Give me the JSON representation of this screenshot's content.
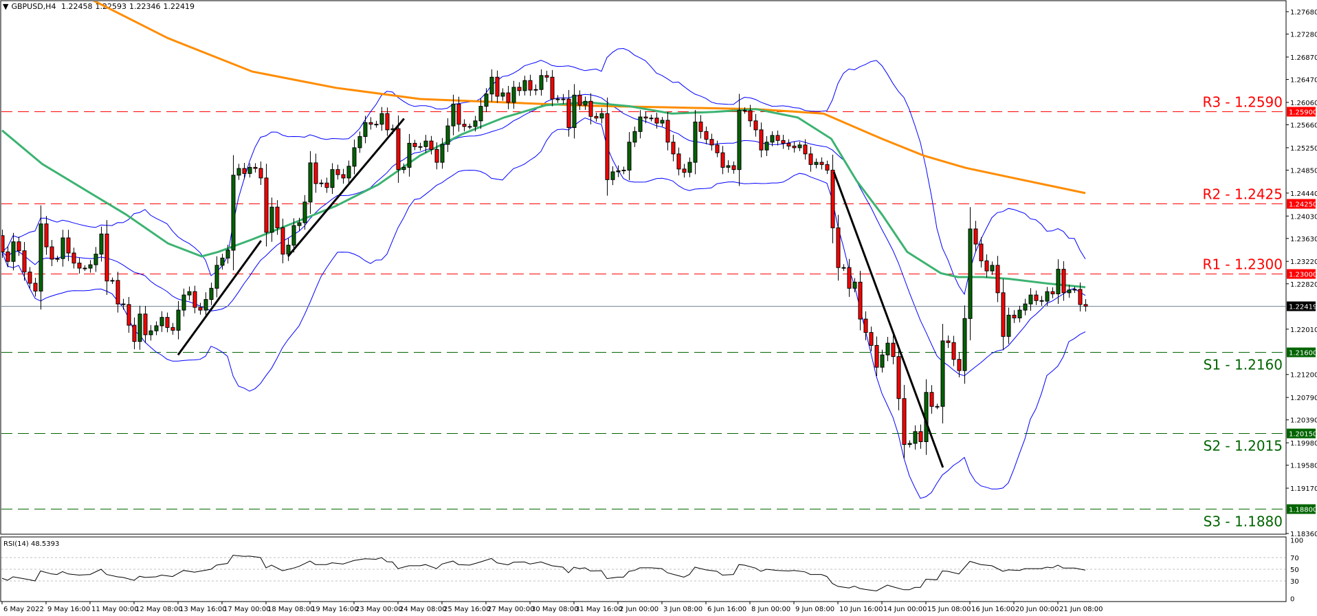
{
  "header": {
    "menu_icon": "triangle-down-icon",
    "symbol_label": "GBPUSD,H4",
    "open": "1.22458",
    "high": "1.22593",
    "low": "1.22346",
    "close": "1.22419"
  },
  "rsi_label": "RSI(14) 48.5393",
  "colors": {
    "bull_candle": "#006400",
    "bear_candle": "#ff0000",
    "bollinger": "#0000ff",
    "ma_fast": "#3cb371",
    "ma_slow": "#ff8c00",
    "resistance": "#ff0000",
    "support": "#006400",
    "current_price_line": "#778899",
    "trendline": "#000000"
  },
  "chart_data": [
    {
      "type": "candlestick",
      "symbol": "GBPUSD",
      "timeframe": "H4",
      "ylim": [
        1.1836,
        1.2768
      ],
      "first_open": 1.2368,
      "closes": [
        1.2339,
        1.2322,
        1.2357,
        1.2341,
        1.2303,
        1.2283,
        1.2269,
        1.2389,
        1.2348,
        1.2326,
        1.2327,
        1.2364,
        1.2337,
        1.2319,
        1.231,
        1.231,
        1.2316,
        1.2335,
        1.2371,
        1.2287,
        1.2288,
        1.2246,
        1.2245,
        1.2208,
        1.2179,
        1.2228,
        1.2191,
        1.2198,
        1.2207,
        1.2222,
        1.2204,
        1.2199,
        1.2235,
        1.2262,
        1.2268,
        1.224,
        1.2235,
        1.2254,
        1.2274,
        1.2315,
        1.2328,
        1.2342,
        1.2476,
        1.2488,
        1.2479,
        1.249,
        1.2488,
        1.2471,
        1.2374,
        1.2419,
        1.2382,
        1.2335,
        1.2351,
        1.2386,
        1.2391,
        1.2428,
        1.2498,
        1.2461,
        1.2462,
        1.2454,
        1.2486,
        1.2477,
        1.2471,
        1.2492,
        1.2525,
        1.2545,
        1.257,
        1.2567,
        1.2567,
        1.2586,
        1.2557,
        1.2559,
        1.2486,
        1.249,
        1.2533,
        1.2527,
        1.2527,
        1.2537,
        1.2522,
        1.2499,
        1.2531,
        1.2564,
        1.2603,
        1.2567,
        1.2563,
        1.2563,
        1.2573,
        1.2599,
        1.2621,
        1.2651,
        1.2617,
        1.2623,
        1.2606,
        1.2633,
        1.2627,
        1.2645,
        1.2628,
        1.2629,
        1.2654,
        1.2651,
        1.2612,
        1.2612,
        1.2612,
        1.2561,
        1.2619,
        1.2601,
        1.2608,
        1.2581,
        1.2578,
        1.2586,
        1.2468,
        1.2482,
        1.2484,
        1.2485,
        1.2535,
        1.2554,
        1.258,
        1.2578,
        1.2578,
        1.2569,
        1.2574,
        1.2535,
        1.2514,
        1.2487,
        1.2481,
        1.2499,
        1.2571,
        1.2554,
        1.254,
        1.253,
        1.2516,
        1.249,
        1.2493,
        1.2486,
        1.2592,
        1.2591,
        1.2573,
        1.2557,
        1.2521,
        1.2535,
        1.2547,
        1.2538,
        1.2533,
        1.2528,
        1.2525,
        1.253,
        1.2514,
        1.2495,
        1.2499,
        1.2495,
        1.2485,
        1.2382,
        1.2311,
        1.2311,
        1.2274,
        1.2285,
        1.2219,
        1.2195,
        1.2172,
        1.2133,
        1.2155,
        1.2176,
        1.2152,
        1.2077,
        1.1995,
        1.1997,
        1.2018,
        1.2,
        1.2088,
        1.2063,
        1.2063,
        1.218,
        1.2177,
        1.2147,
        1.2127,
        1.222,
        1.238,
        1.2353,
        1.2323,
        1.2305,
        1.2315,
        1.2266,
        1.2188,
        1.2226,
        1.2221,
        1.2235,
        1.2246,
        1.2262,
        1.2252,
        1.2251,
        1.2268,
        1.2264,
        1.2308,
        1.2266,
        1.2271,
        1.2272,
        1.2245,
        1.22419
      ],
      "price_axis_ticks": [
        "1.27680",
        "1.27280",
        "1.26870",
        "1.26470",
        "1.26060",
        "1.25660",
        "1.25250",
        "1.24850",
        "1.24440",
        "1.24030",
        "1.23630",
        "1.23220",
        "1.22820",
        "1.22010",
        "1.21200",
        "1.20790",
        "1.20390",
        "1.19980",
        "1.19580",
        "1.19170",
        "1.18360"
      ],
      "x_tick_labels": [
        "6 May 2022",
        "9 May 16:00",
        "11 May 00:00",
        "12 May 08:00",
        "13 May 16:00",
        "17 May 00:00",
        "18 May 08:00",
        "19 May 16:00",
        "23 May 00:00",
        "24 May 08:00",
        "25 May 16:00",
        "27 May 00:00",
        "30 May 08:00",
        "31 May 16:00",
        "2 Jun 00:00",
        "3 Jun 08:00",
        "6 Jun 16:00",
        "8 Jun 00:00",
        "9 Jun 08:00",
        "10 Jun 16:00",
        "14 Jun 00:00",
        "15 Jun 08:00",
        "16 Jun 16:00",
        "20 Jun 00:00",
        "21 Jun 08:00"
      ],
      "levels": [
        {
          "label": "R3 - 1.2590",
          "value": 1.259,
          "tag": "1.25900",
          "kind": "resistance"
        },
        {
          "label": "R2 - 1.2425",
          "value": 1.2425,
          "tag": "1.24250",
          "kind": "resistance"
        },
        {
          "label": "R1 - 1.2300",
          "value": 1.23,
          "tag": "1.23000",
          "kind": "resistance"
        },
        {
          "label": "S1 - 1.2160",
          "value": 1.216,
          "tag": "1.21600",
          "kind": "support"
        },
        {
          "label": "S2 - 1.2015",
          "value": 1.2015,
          "tag": "1.20150",
          "kind": "support"
        },
        {
          "label": "S3 - 1.1880",
          "value": 1.188,
          "tag": "1.18800",
          "kind": "support"
        }
      ],
      "current_price": {
        "value": 1.22419,
        "tag": "1.22419"
      },
      "bollinger": {
        "period": 20,
        "deviations": 2
      },
      "ma_slow": [
        [
          16.4,
          1.2789
        ],
        [
          30.1,
          1.2721
        ],
        [
          45.5,
          1.2661
        ],
        [
          60.75,
          1.2632
        ],
        [
          76,
          1.2612
        ],
        [
          91.25,
          1.2606
        ],
        [
          106.5,
          1.26
        ],
        [
          121.9,
          1.2597
        ],
        [
          137.1,
          1.2594
        ],
        [
          149.4,
          1.2586
        ],
        [
          160,
          1.2541
        ],
        [
          167.6,
          1.2511
        ],
        [
          175.25,
          1.2489
        ],
        [
          182.9,
          1.2473
        ],
        [
          197,
          1.2444
        ]
      ],
      "ma_fast": [
        [
          0,
          1.2556
        ],
        [
          7.3,
          1.2496
        ],
        [
          14.9,
          1.2451
        ],
        [
          22.5,
          1.2406
        ],
        [
          30.2,
          1.2354
        ],
        [
          36.3,
          1.2331
        ],
        [
          39.3,
          1.2339
        ],
        [
          45.4,
          1.2361
        ],
        [
          53.1,
          1.2391
        ],
        [
          60.7,
          1.2421
        ],
        [
          68.4,
          1.2459
        ],
        [
          76,
          1.2511
        ],
        [
          83.6,
          1.2549
        ],
        [
          91.3,
          1.2579
        ],
        [
          98.9,
          1.2601
        ],
        [
          106.6,
          1.2606
        ],
        [
          114.2,
          1.2599
        ],
        [
          121.8,
          1.2586
        ],
        [
          129.5,
          1.2589
        ],
        [
          137.1,
          1.2594
        ],
        [
          144.7,
          1.2579
        ],
        [
          150.8,
          1.2541
        ],
        [
          155.4,
          1.2466
        ],
        [
          160,
          1.2406
        ],
        [
          164.6,
          1.2339
        ],
        [
          170.7,
          1.2301
        ],
        [
          173.8,
          1.2294
        ],
        [
          178.4,
          1.2294
        ],
        [
          183,
          1.2291
        ],
        [
          190.6,
          1.2282
        ],
        [
          197,
          1.2276
        ]
      ],
      "trendlines": [
        {
          "from": [
            32,
            1.2155
          ],
          "to": [
            47.1,
            1.2359
          ]
        },
        {
          "from": [
            52,
            1.2331
          ],
          "to": [
            73.1,
            1.2577
          ]
        },
        {
          "from": [
            151.25,
            1.2482
          ],
          "to": [
            171.1,
            1.1954
          ]
        }
      ]
    },
    {
      "type": "line",
      "name": "RSI(14)",
      "ylim": [
        0,
        100
      ],
      "levels": [
        70,
        50,
        30
      ],
      "ticks": [
        "100",
        "70",
        "50",
        "30",
        "0"
      ],
      "points": [
        [
          0,
          34.6
        ],
        [
          1,
          31
        ],
        [
          2,
          37
        ],
        [
          5,
          32
        ],
        [
          6,
          30
        ],
        [
          7,
          47
        ],
        [
          9,
          42
        ],
        [
          10,
          41
        ],
        [
          11,
          46
        ],
        [
          12,
          42
        ],
        [
          14,
          40
        ],
        [
          16,
          41
        ],
        [
          18,
          50
        ],
        [
          19,
          41
        ],
        [
          21,
          37
        ],
        [
          22,
          36
        ],
        [
          24,
          31
        ],
        [
          25,
          38
        ],
        [
          26,
          36
        ],
        [
          28,
          37
        ],
        [
          29,
          40
        ],
        [
          31,
          37.5
        ],
        [
          33,
          48
        ],
        [
          35,
          45
        ],
        [
          38,
          50
        ],
        [
          39,
          57
        ],
        [
          41,
          60
        ],
        [
          42,
          74
        ],
        [
          44,
          72
        ],
        [
          45,
          72.5
        ],
        [
          47,
          70
        ],
        [
          48,
          52.5
        ],
        [
          49,
          57
        ],
        [
          51,
          47.5
        ],
        [
          53,
          52
        ],
        [
          54,
          55
        ],
        [
          56,
          64
        ],
        [
          57,
          58
        ],
        [
          59,
          58
        ],
        [
          60,
          61
        ],
        [
          62,
          59
        ],
        [
          64,
          65
        ],
        [
          66,
          68
        ],
        [
          68,
          67
        ],
        [
          69,
          70
        ],
        [
          70,
          63
        ],
        [
          71,
          62.5
        ],
        [
          72,
          51
        ],
        [
          74,
          56
        ],
        [
          76,
          56
        ],
        [
          77,
          58
        ],
        [
          79,
          51
        ],
        [
          80,
          59
        ],
        [
          82,
          64
        ],
        [
          83,
          58
        ],
        [
          85,
          57
        ],
        [
          87,
          62.5
        ],
        [
          89,
          68.5
        ],
        [
          90,
          61
        ],
        [
          92,
          57.5
        ],
        [
          93,
          62
        ],
        [
          95,
          62.5
        ],
        [
          96,
          59
        ],
        [
          98,
          62.5
        ],
        [
          100,
          56
        ],
        [
          102,
          53.5
        ],
        [
          103,
          44
        ],
        [
          104,
          53.5
        ],
        [
          105,
          51
        ],
        [
          106,
          52.5
        ],
        [
          107,
          47
        ],
        [
          109,
          47.5
        ],
        [
          110,
          34
        ],
        [
          112,
          36.5
        ],
        [
          113,
          36.5
        ],
        [
          114,
          46.5
        ],
        [
          115,
          48
        ],
        [
          116,
          52.5
        ],
        [
          118,
          52.5
        ],
        [
          120,
          51
        ],
        [
          121,
          44
        ],
        [
          123,
          39
        ],
        [
          124,
          36.5
        ],
        [
          125,
          41
        ],
        [
          126,
          53.5
        ],
        [
          128,
          49
        ],
        [
          130,
          46.5
        ],
        [
          131,
          40
        ],
        [
          133,
          41
        ],
        [
          134,
          58
        ],
        [
          135,
          57
        ],
        [
          137,
          52
        ],
        [
          138,
          46.5
        ],
        [
          139,
          50
        ],
        [
          141,
          48
        ],
        [
          143,
          47
        ],
        [
          144,
          48
        ],
        [
          146,
          45.5
        ],
        [
          147,
          41
        ],
        [
          149,
          41
        ],
        [
          150,
          37.5
        ],
        [
          151,
          25.7
        ],
        [
          152,
          20.7
        ],
        [
          154,
          18
        ],
        [
          155,
          21
        ],
        [
          156,
          17
        ],
        [
          157,
          15.4
        ],
        [
          159,
          13
        ],
        [
          161,
          23
        ],
        [
          162,
          20
        ],
        [
          164,
          15
        ],
        [
          165,
          15
        ],
        [
          166,
          19
        ],
        [
          167,
          19
        ],
        [
          168,
          33
        ],
        [
          170,
          32
        ],
        [
          171,
          47
        ],
        [
          172,
          46.5
        ],
        [
          174,
          42
        ],
        [
          176,
          63.5
        ],
        [
          178,
          58
        ],
        [
          180,
          56
        ],
        [
          182,
          46.5
        ],
        [
          183,
          49
        ],
        [
          185,
          48
        ],
        [
          186,
          51
        ],
        [
          189,
          51
        ],
        [
          190,
          53.5
        ],
        [
          191,
          52.5
        ],
        [
          192,
          57
        ],
        [
          193,
          52
        ],
        [
          195,
          52
        ],
        [
          197,
          48.5393
        ]
      ]
    }
  ]
}
